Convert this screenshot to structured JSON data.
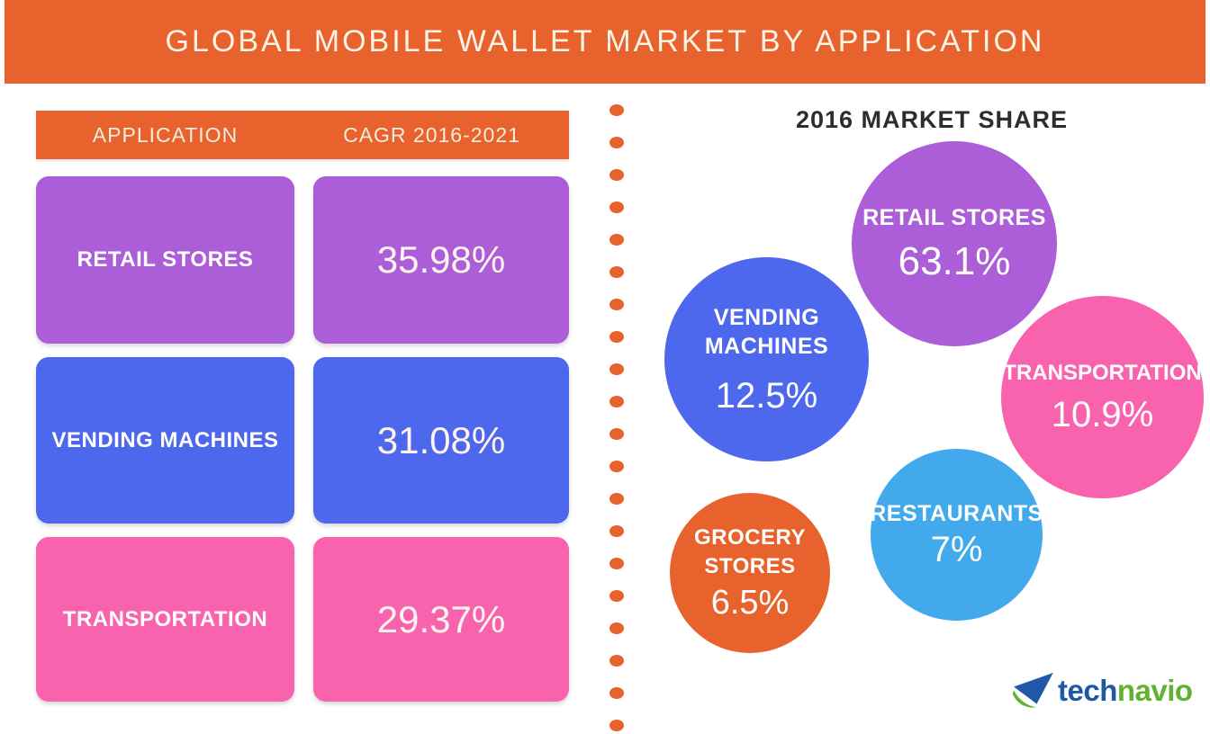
{
  "header": {
    "title": "GLOBAL MOBILE WALLET MARKET BY APPLICATION"
  },
  "table": {
    "columns": [
      "APPLICATION",
      "CAGR 2016-2021"
    ],
    "rows": [
      {
        "application": "RETAIL STORES",
        "cagr": "35.98%",
        "color": "#ab5ed8"
      },
      {
        "application": "VENDING MACHINES",
        "cagr": "31.08%",
        "color": "#4d67ed"
      },
      {
        "application": "TRANSPORTATION",
        "cagr": "29.37%",
        "color": "#f963ae"
      }
    ]
  },
  "divider": {
    "dot_count": 20,
    "color": "#e7622c"
  },
  "market_share": {
    "title": "2016 MARKET SHARE",
    "bubbles": [
      {
        "label_lines": [
          "RETAIL STORES"
        ],
        "value": "63.1%",
        "color": "#ab5ed8"
      },
      {
        "label_lines": [
          "VENDING",
          "MACHINES"
        ],
        "value": "12.5%",
        "color": "#4d67ed"
      },
      {
        "label_lines": [
          "TRANSPORTATION"
        ],
        "value": "10.9%",
        "color": "#f963ae"
      },
      {
        "label_lines": [
          "RESTAURANTS"
        ],
        "value": "7%",
        "color": "#41a9ec"
      },
      {
        "label_lines": [
          "GROCERY",
          "STORES"
        ],
        "value": "6.5%",
        "color": "#e7622c"
      }
    ]
  },
  "logo": {
    "text_primary": "tech",
    "text_secondary": "navio",
    "icon": "paper-plane-icon",
    "blue": "#2058a8",
    "green": "#5fb32f"
  },
  "palette": {
    "accent_orange": "#e7622c",
    "purple": "#ab5ed8",
    "blue": "#4d67ed",
    "pink": "#f963ae",
    "light_blue": "#41a9ec",
    "title_text": "#2d2d2d"
  },
  "chart_data": [
    {
      "type": "table",
      "title": "GLOBAL MOBILE WALLET MARKET BY APPLICATION",
      "columns": [
        "APPLICATION",
        "CAGR 2016-2021"
      ],
      "rows": [
        [
          "RETAIL STORES",
          "35.98%"
        ],
        [
          "VENDING MACHINES",
          "31.08%"
        ],
        [
          "TRANSPORTATION",
          "29.37%"
        ]
      ]
    },
    {
      "type": "pie",
      "subtype": "bubble",
      "title": "2016 MARKET SHARE",
      "categories": [
        "RETAIL STORES",
        "VENDING MACHINES",
        "TRANSPORTATION",
        "RESTAURANTS",
        "GROCERY STORES"
      ],
      "values": [
        63.1,
        12.5,
        10.9,
        7,
        6.5
      ],
      "unit": "%",
      "legend_position": "none",
      "labels_on_bubbles": true
    }
  ]
}
